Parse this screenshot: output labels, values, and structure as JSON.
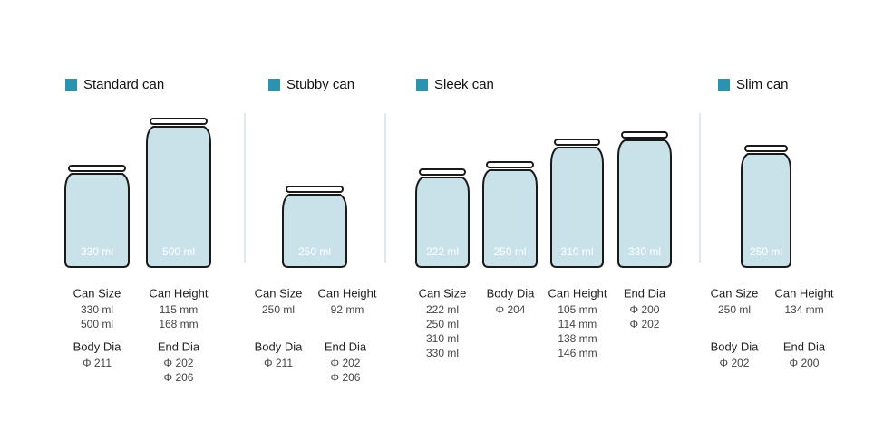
{
  "sections": [
    {
      "title": "Standard can",
      "cans": [
        "330 ml",
        "500 ml"
      ],
      "specs": [
        {
          "label": "Can Size",
          "values": [
            "330 ml",
            "500 ml"
          ]
        },
        {
          "label": "Can Height",
          "values": [
            "115 mm",
            "168 mm"
          ]
        },
        {
          "label": "Body Dia",
          "values": [
            "Φ 211"
          ]
        },
        {
          "label": "End Dia",
          "values": [
            "Φ 202",
            "Φ 206"
          ]
        }
      ]
    },
    {
      "title": "Stubby can",
      "cans": [
        "250 ml"
      ],
      "specs": [
        {
          "label": "Can Size",
          "values": [
            "250 ml"
          ]
        },
        {
          "label": "Can Height",
          "values": [
            "92 mm"
          ]
        },
        {
          "label": "Body Dia",
          "values": [
            "Φ 211"
          ]
        },
        {
          "label": "End Dia",
          "values": [
            "Φ 202",
            "Φ 206"
          ]
        }
      ]
    },
    {
      "title": "Sleek can",
      "cans": [
        "222 ml",
        "250 ml",
        "310 ml",
        "330 ml"
      ],
      "specs": [
        {
          "label": "Can Size",
          "values": [
            "222 ml",
            "250 ml",
            "310 ml",
            "330 ml"
          ]
        },
        {
          "label": "Body Dia",
          "values": [
            "Φ 204"
          ]
        },
        {
          "label": "Can Height",
          "values": [
            "105 mm",
            "114 mm",
            "138 mm",
            "146 mm"
          ]
        },
        {
          "label": "End Dia",
          "values": [
            "Φ 200",
            "Φ 202"
          ]
        }
      ]
    },
    {
      "title": "Slim can",
      "cans": [
        "250 ml"
      ],
      "specs": [
        {
          "label": "Can Size",
          "values": [
            "250 ml"
          ]
        },
        {
          "label": "Can Height",
          "values": [
            "134 mm"
          ]
        },
        {
          "label": "Body Dia",
          "values": [
            "Φ 202"
          ]
        },
        {
          "label": "End Dia",
          "values": [
            "Φ 200"
          ]
        }
      ]
    }
  ]
}
